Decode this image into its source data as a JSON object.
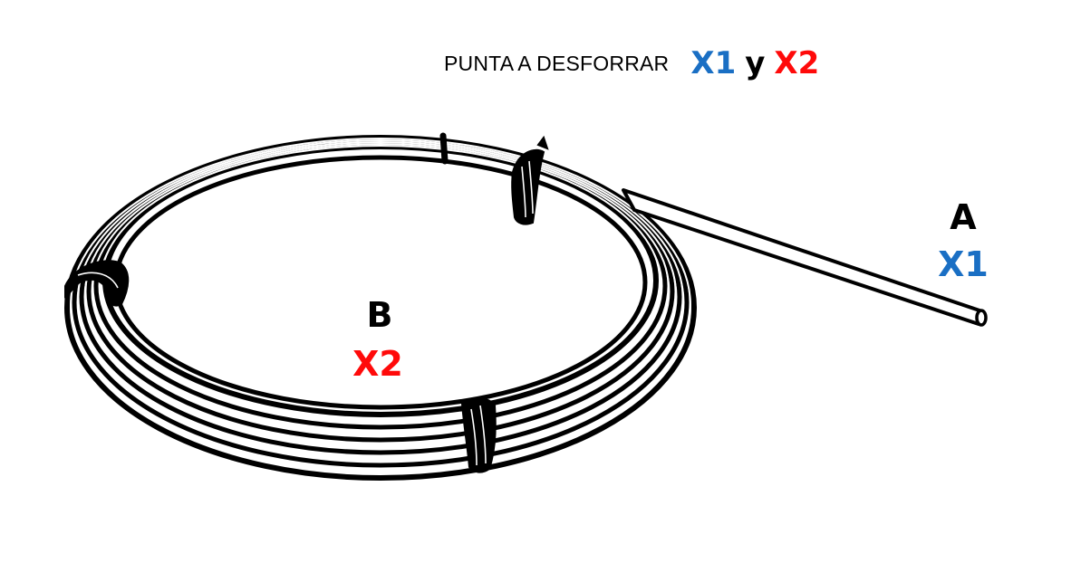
{
  "header": {
    "instruction": "PUNTA A DESFORRAR",
    "code_1": "X1",
    "conjunction": "y",
    "code_2": "X2"
  },
  "end_a": {
    "letter": "A",
    "code": "X1"
  },
  "end_b": {
    "letter": "B",
    "code": "X2"
  },
  "colors": {
    "code_1": "#1a6fc4",
    "code_2": "#ff0a0a",
    "line": "#000000",
    "tube": "#ffffff"
  },
  "icons": [
    "tube-coil-icon",
    "cable-tie-icon",
    "tube-end-icon"
  ]
}
